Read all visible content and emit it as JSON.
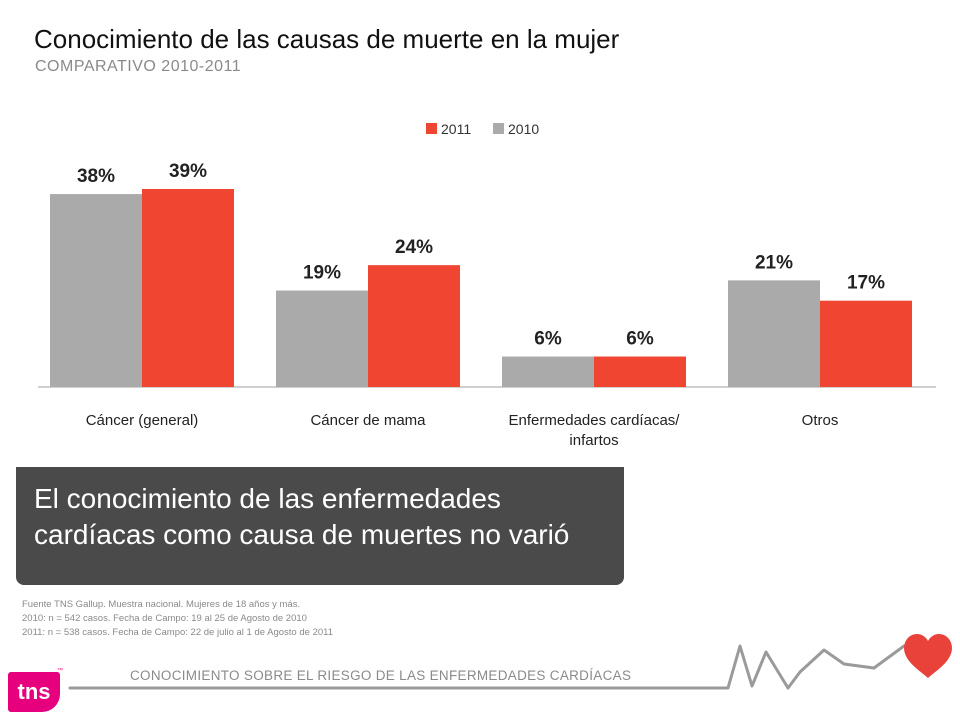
{
  "header": {
    "title": "Conocimiento de las causas de muerte en la mujer",
    "subtitle": "COMPARATIVO 2010-2011"
  },
  "chart_data": {
    "type": "bar",
    "categories": [
      "Cáncer (general)",
      "Cáncer de mama",
      "Enfermedades cardíacas/ infartos",
      "Otros"
    ],
    "category_lines": [
      [
        "Cáncer (general)"
      ],
      [
        "Cáncer de mama"
      ],
      [
        "Enfermedades cardíacas/",
        "infartos"
      ],
      [
        "Otros"
      ]
    ],
    "series": [
      {
        "name": "2010",
        "color": "#aaaaaa",
        "values": [
          38,
          19,
          6,
          21
        ],
        "labels": [
          "38%",
          "19%",
          "6%",
          "21%"
        ]
      },
      {
        "name": "2011",
        "color": "#f04530",
        "values": [
          39,
          24,
          6,
          17
        ],
        "labels": [
          "39%",
          "24%",
          "6%",
          "17%"
        ]
      }
    ],
    "legend": {
      "items": [
        "2011",
        "2010"
      ],
      "placement": "top-right"
    },
    "ylim": [
      0,
      39
    ]
  },
  "callout": {
    "line1": "El conocimiento de las enfermedades",
    "line2": "cardíacas como causa de muertes no varió"
  },
  "source": {
    "line1": "Fuente TNS Gallup. Muestra nacional. Mujeres de 18 años y más.",
    "line2": "2010: n = 542 casos. Fecha de Campo: 19 al 25 de Agosto de 2010",
    "line3": "2011: n = 538 casos. Fecha de Campo: 22 de julio al 1 de Agosto de 2011"
  },
  "footer": {
    "text": "CONOCIMIENTO SOBRE EL RIESGO DE LAS ENFERMEDADES CARDÍACAS"
  },
  "logo": {
    "text": "tns",
    "tm": "™"
  },
  "colors": {
    "accent": "#f04530",
    "gray": "#aaaaaa",
    "callout": "#4a4a4a",
    "heart": "#e8423a",
    "brand": "#e6007e"
  }
}
